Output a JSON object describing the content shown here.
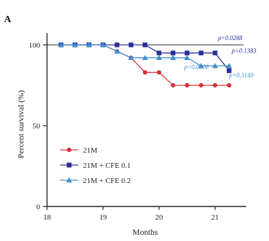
{
  "chart_data": {
    "type": "line",
    "panel_label": "A",
    "xlabel": "Months",
    "ylabel": "Percent survival (%)",
    "xlim": [
      18,
      21.4
    ],
    "ylim": [
      0,
      104
    ],
    "x_ticks": [
      "18",
      "19",
      "20",
      "21"
    ],
    "y_ticks": [
      "0",
      "50",
      "100"
    ],
    "grid": false,
    "legend_position": "bottom-left",
    "reference_line_y": 100,
    "series": [
      {
        "name": "21M",
        "color": "#d6323c",
        "marker": "circle",
        "x": [
          18.25,
          18.5,
          18.75,
          19.0,
          19.25,
          19.5,
          19.75,
          20.0,
          20.25,
          20.5,
          20.75,
          21.0,
          21.25
        ],
        "y": [
          100,
          100,
          100,
          100,
          96,
          92,
          83,
          83,
          75,
          75,
          75,
          75,
          75
        ]
      },
      {
        "name": "21M + CFE 0.1",
        "color": "#2a2f9a",
        "marker": "square",
        "x": [
          18.25,
          18.5,
          18.75,
          19.0,
          19.25,
          19.5,
          19.75,
          20.0,
          20.25,
          20.5,
          20.75,
          21.0,
          21.25
        ],
        "y": [
          100,
          100,
          100,
          100,
          100,
          100,
          100,
          95,
          95,
          95,
          95,
          95,
          84
        ]
      },
      {
        "name": "21M + CFE 0.2",
        "color": "#3d8fd0",
        "marker": "triangle",
        "x": [
          18.25,
          18.5,
          18.75,
          19.0,
          19.25,
          19.5,
          19.75,
          20.0,
          20.25,
          20.5,
          20.75,
          21.0,
          21.25
        ],
        "y": [
          100,
          100,
          100,
          100,
          96,
          92,
          92,
          92,
          92,
          92,
          87,
          87,
          87
        ]
      }
    ],
    "annotations": [
      {
        "text": "p=0.0288",
        "color": "#2a2f9a",
        "x": 21.05,
        "y": 103
      },
      {
        "text": "p=0.1383",
        "color": "#2a2f9a",
        "x": 21.3,
        "y": 95
      },
      {
        "text": "p=0.0006",
        "color": "#3d8fd0",
        "x": 20.45,
        "y": 85
      },
      {
        "text": "p=0.3149",
        "color": "#3d8fd0",
        "x": 21.25,
        "y": 80
      }
    ]
  }
}
